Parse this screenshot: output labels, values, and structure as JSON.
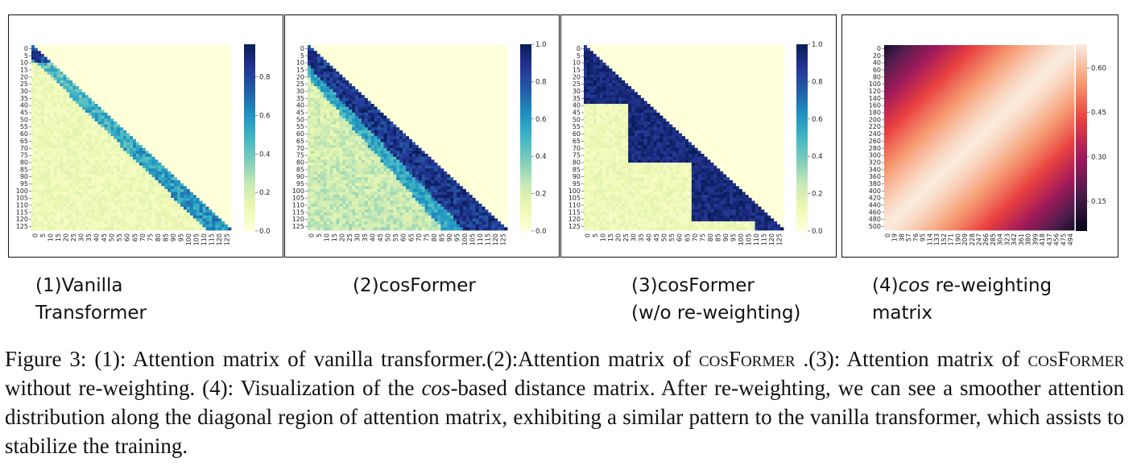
{
  "panels": [
    {
      "id": "vanilla",
      "label_lines": [
        "(1)Vanilla",
        "Transformer"
      ],
      "y_ticks": [
        "0",
        "5",
        "10",
        "15",
        "20",
        "25",
        "30",
        "35",
        "40",
        "45",
        "50",
        "55",
        "60",
        "65",
        "70",
        "75",
        "80",
        "85",
        "90",
        "95",
        "100",
        "105",
        "110",
        "115",
        "120",
        "125"
      ],
      "x_ticks": [
        "0",
        "5",
        "10",
        "15",
        "20",
        "25",
        "30",
        "35",
        "40",
        "45",
        "50",
        "55",
        "60",
        "65",
        "70",
        "75",
        "80",
        "85",
        "90",
        "95",
        "100",
        "105",
        "110",
        "115",
        "120",
        "125"
      ],
      "colorbar_ticks": [
        "0.0",
        "0.2",
        "0.4",
        "0.6",
        "0.8"
      ]
    },
    {
      "id": "cosformer",
      "label_lines": [
        "(2)cosFormer"
      ],
      "y_ticks": [
        "0",
        "5",
        "10",
        "15",
        "20",
        "25",
        "30",
        "35",
        "40",
        "45",
        "50",
        "55",
        "60",
        "65",
        "70",
        "75",
        "80",
        "85",
        "90",
        "95",
        "100",
        "105",
        "110",
        "115",
        "120",
        "125"
      ],
      "x_ticks": [
        "0",
        "5",
        "10",
        "15",
        "20",
        "25",
        "30",
        "35",
        "40",
        "45",
        "50",
        "55",
        "60",
        "65",
        "70",
        "75",
        "80",
        "85",
        "90",
        "95",
        "100",
        "105",
        "110",
        "115",
        "120",
        "125"
      ],
      "colorbar_ticks": [
        "0.0",
        "0.2",
        "0.4",
        "0.6",
        "0.8",
        "1.0"
      ]
    },
    {
      "id": "cosformer-no-rw",
      "label_lines": [
        "(3)cosFormer",
        "(w/o re-weighting)"
      ],
      "y_ticks": [
        "0",
        "5",
        "10",
        "15",
        "20",
        "25",
        "30",
        "35",
        "40",
        "45",
        "50",
        "55",
        "60",
        "65",
        "70",
        "75",
        "80",
        "85",
        "90",
        "95",
        "100",
        "105",
        "110",
        "115",
        "120",
        "125"
      ],
      "x_ticks": [
        "0",
        "5",
        "10",
        "15",
        "20",
        "25",
        "30",
        "35",
        "40",
        "45",
        "50",
        "55",
        "60",
        "65",
        "70",
        "75",
        "80",
        "85",
        "90",
        "95",
        "100",
        "105",
        "110",
        "115",
        "120",
        "125"
      ],
      "colorbar_ticks": [
        "0.0",
        "0.2",
        "0.4",
        "0.6",
        "0.8",
        "1.0"
      ]
    },
    {
      "id": "cos-matrix",
      "label_lines": [
        "(4)",
        "cos",
        " re-weighting",
        "matrix"
      ],
      "y_ticks": [
        "0",
        "20",
        "40",
        "60",
        "80",
        "100",
        "120",
        "140",
        "160",
        "180",
        "200",
        "220",
        "240",
        "260",
        "280",
        "300",
        "320",
        "340",
        "360",
        "380",
        "400",
        "420",
        "440",
        "460",
        "480",
        "500"
      ],
      "x_ticks": [
        "0",
        "19",
        "38",
        "57",
        "76",
        "95",
        "114",
        "133",
        "152",
        "171",
        "190",
        "209",
        "228",
        "247",
        "266",
        "285",
        "304",
        "323",
        "342",
        "361",
        "380",
        "399",
        "418",
        "437",
        "456",
        "475",
        "494"
      ],
      "colorbar_ticks": [
        "0.15",
        "0.30",
        "0.45",
        "0.60"
      ]
    }
  ],
  "caption": {
    "fig": "Figure 3:",
    "p1": " (1): Attention matrix of vanilla transformer.(2):Attention matrix of ",
    "sc1": "cosFormer",
    "p2": " .(3): Attention matrix of ",
    "sc2": "cosFormer",
    "p3": " without re-weighting. (4): Visualization of the ",
    "it1": "cos",
    "p4": "-based distance matrix. After re-weighting, we can see a smoother attention distribution along the diagonal region of attention matrix, exhibiting a similar pattern to the vanilla transformer, which assists to stabilize the training."
  },
  "colors": {
    "ylgnbu_light": "#ffffd9",
    "ylgnbu_dark": "#081d58",
    "rocket_dark": "#03051a",
    "rocket_light": "#faebdd"
  }
}
